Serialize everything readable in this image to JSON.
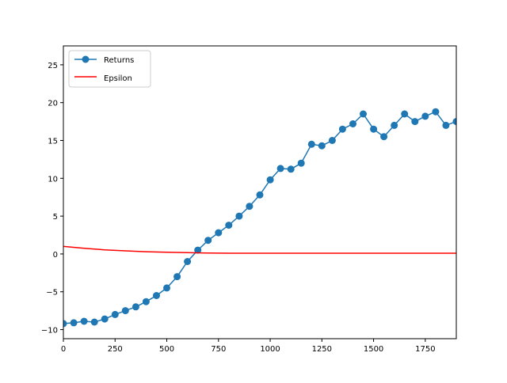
{
  "chart_data": {
    "type": "line",
    "title": "",
    "xlabel": "",
    "ylabel": "",
    "xlim": [
      0,
      1900
    ],
    "ylim": [
      -11.2,
      27.5
    ],
    "grid": false,
    "legend_placement": "top-left",
    "x_ticks": [
      0,
      250,
      500,
      750,
      1000,
      1250,
      1500,
      1750
    ],
    "y_ticks": [
      -10,
      -5,
      0,
      5,
      10,
      15,
      20,
      25
    ],
    "x_tick_labels": [
      "0",
      "250",
      "500",
      "750",
      "1000",
      "1250",
      "1500",
      "1750"
    ],
    "y_tick_labels": [
      "−10",
      "−5",
      "0",
      "5",
      "10",
      "15",
      "20",
      "25"
    ],
    "series": [
      {
        "name": "Returns",
        "color": "#1f77b4",
        "marker": "circle",
        "x": [
          0,
          50,
          100,
          150,
          200,
          250,
          300,
          350,
          400,
          450,
          500,
          550,
          600,
          650,
          700,
          750,
          800,
          850,
          900,
          950,
          1000,
          1050,
          1100,
          1150,
          1200,
          1250,
          1300,
          1350,
          1400,
          1450,
          1500,
          1550,
          1600,
          1650,
          1700,
          1750,
          1800,
          1850,
          1900
        ],
        "y": [
          -9.2,
          -9.1,
          -8.9,
          -9.0,
          -8.6,
          -8.0,
          -7.5,
          -7.0,
          -6.3,
          -5.5,
          -4.5,
          -3.0,
          -1.0,
          0.5,
          1.8,
          2.8,
          3.8,
          5.0,
          6.3,
          7.8,
          9.8,
          11.3,
          11.2,
          12.0,
          14.5,
          14.3,
          15.0,
          16.5,
          17.2,
          18.5,
          16.5,
          15.5,
          17.0,
          18.5,
          17.5,
          18.2,
          18.8,
          17.0,
          17.5
        ]
      },
      {
        "name": "Epsilon",
        "color": "#ff0000",
        "x": [
          0,
          100,
          200,
          300,
          400,
          500,
          600,
          700,
          800,
          900,
          1000,
          1200,
          1400,
          1600,
          1800,
          1900
        ],
        "y": [
          1.0,
          0.74,
          0.55,
          0.41,
          0.3,
          0.22,
          0.17,
          0.12,
          0.1,
          0.1,
          0.1,
          0.1,
          0.1,
          0.1,
          0.1,
          0.1
        ]
      }
    ]
  }
}
